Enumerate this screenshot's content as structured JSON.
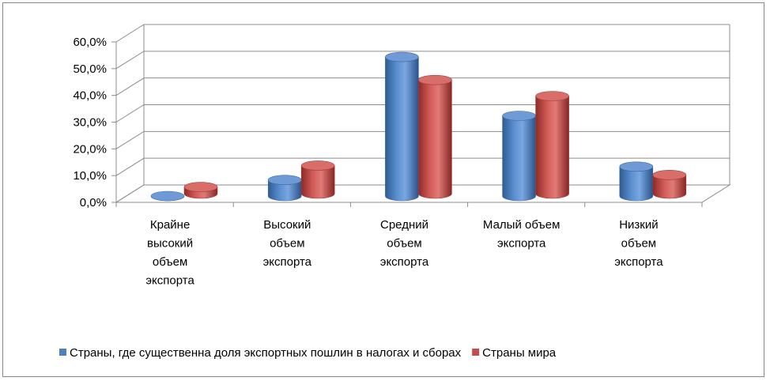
{
  "chart_data": {
    "type": "bar",
    "style": "3d-cylinder",
    "categories": [
      [
        "Крайне",
        "высокий",
        "объем",
        "экспорта"
      ],
      [
        "Высокий",
        "объем",
        "экспорта"
      ],
      [
        "Средний",
        "объем",
        "экспорта"
      ],
      [
        "Малый объем",
        "экспорта"
      ],
      [
        "Низкий",
        "объем",
        "экспорта"
      ]
    ],
    "series": [
      {
        "name": "Страны, где существенна доля экспортных пошлин в налогах и сборах",
        "color": "#4f81bd",
        "values": [
          0.0,
          6.0,
          52.0,
          30.0,
          11.0
        ]
      },
      {
        "name": "Страны мира",
        "color": "#c0504d",
        "values": [
          2.5,
          10.5,
          42.5,
          36.5,
          7.0
        ]
      }
    ],
    "yticks": [
      "0,0%",
      "10,0%",
      "20,0%",
      "30,0%",
      "40,0%",
      "50,0%",
      "60,0%"
    ],
    "ylim": [
      0,
      60
    ],
    "grid": true,
    "legend_position": "bottom"
  }
}
